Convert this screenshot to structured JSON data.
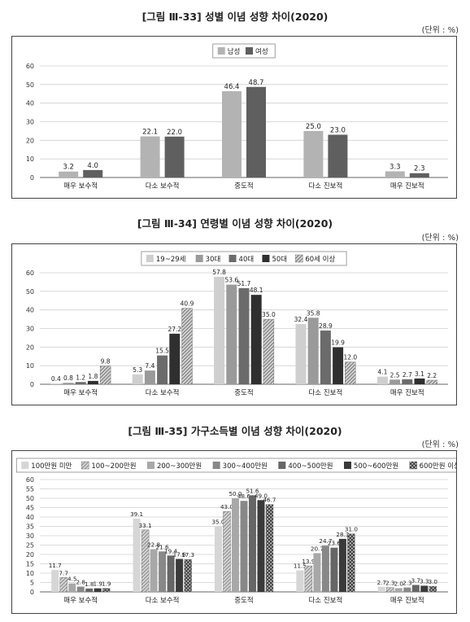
{
  "figures": [
    {
      "title": "[그림 Ⅲ-33] 성별 이념 성향 차이(2020)",
      "unit": "(단위 : %)"
    },
    {
      "title": "[그림 Ⅲ-34] 연령별 이념 성향 차이(2020)",
      "unit": "(단위 : %)"
    },
    {
      "title": "[그림 Ⅲ-35] 가구소득별 이념 성향 차이(2020)",
      "unit": "(단위 : %)"
    }
  ],
  "chart_data": [
    {
      "type": "bar",
      "categories": [
        "매우 보수적",
        "다소 보수적",
        "중도적",
        "다소 진보적",
        "매우 진보적"
      ],
      "ylim": [
        0,
        60
      ],
      "yticks": [
        0,
        10,
        20,
        30,
        40,
        50,
        60
      ],
      "grid": true,
      "legend_position": "top-center",
      "series": [
        {
          "name": "남성",
          "color": "#b3b3b3",
          "pattern": "solid",
          "values": [
            3.2,
            22.1,
            46.4,
            25.0,
            3.3
          ]
        },
        {
          "name": "여성",
          "color": "#5f5f5f",
          "pattern": "solid",
          "values": [
            4.0,
            22.0,
            48.7,
            23.0,
            2.3
          ]
        }
      ]
    },
    {
      "type": "bar",
      "categories": [
        "매우 보수적",
        "다소 보수적",
        "중도적",
        "다소 진보적",
        "매우 진보적"
      ],
      "ylim": [
        0,
        60
      ],
      "yticks": [
        0,
        10,
        20,
        30,
        40,
        50,
        60
      ],
      "grid": true,
      "legend_position": "top-center",
      "series": [
        {
          "name": "19~29세",
          "color": "#cfcfcf",
          "pattern": "solid",
          "values": [
            0.4,
            5.3,
            57.8,
            32.4,
            4.1
          ]
        },
        {
          "name": "30대",
          "color": "#9a9a9a",
          "pattern": "solid",
          "values": [
            0.8,
            7.4,
            53.6,
            35.8,
            2.5
          ]
        },
        {
          "name": "40대",
          "color": "#6b6b6b",
          "pattern": "solid",
          "values": [
            1.2,
            15.5,
            51.7,
            28.9,
            2.7
          ]
        },
        {
          "name": "50대",
          "color": "#2f2f2f",
          "pattern": "solid",
          "values": [
            1.8,
            27.2,
            48.1,
            19.9,
            3.1
          ]
        },
        {
          "name": "60세 이상",
          "color": "#8a8a8a",
          "pattern": "diagonal",
          "values": [
            9.8,
            40.9,
            35.0,
            12.0,
            2.2
          ]
        }
      ]
    },
    {
      "type": "bar",
      "categories": [
        "매우 보수적",
        "다소 보수적",
        "중도적",
        "다소 진보적",
        "매우 진보적"
      ],
      "ylim": [
        0,
        60
      ],
      "yticks": [
        0,
        5,
        10,
        15,
        20,
        25,
        30,
        35,
        40,
        45,
        50,
        55,
        60
      ],
      "grid": true,
      "legend_position": "top-center",
      "series": [
        {
          "name": "100만원 미만",
          "color": "#d6d6d6",
          "pattern": "solid",
          "values": [
            11.7,
            39.1,
            35.0,
            11.5,
            2.7
          ]
        },
        {
          "name": "100~200만원",
          "color": "#9a9a9a",
          "pattern": "diagonal",
          "values": [
            7.7,
            33.1,
            43.0,
            13.9,
            2.3
          ]
        },
        {
          "name": "200~300만원",
          "color": "#a8a8a8",
          "pattern": "solid",
          "values": [
            4.5,
            22.8,
            50.0,
            20.7,
            2.0
          ]
        },
        {
          "name": "300~400만원",
          "color": "#888888",
          "pattern": "solid",
          "values": [
            2.8,
            21.6,
            48.6,
            24.7,
            2.3
          ]
        },
        {
          "name": "400~500만원",
          "color": "#666666",
          "pattern": "solid",
          "values": [
            1.8,
            19.4,
            51.6,
            23.6,
            3.7
          ]
        },
        {
          "name": "500~600만원",
          "color": "#3a3a3a",
          "pattern": "solid",
          "values": [
            1.9,
            17.6,
            49.0,
            28.3,
            3.3
          ]
        },
        {
          "name": "600만원 이상",
          "color": "#707070",
          "pattern": "crosshatch",
          "values": [
            1.9,
            17.3,
            46.7,
            31.0,
            3.0
          ]
        }
      ]
    }
  ]
}
